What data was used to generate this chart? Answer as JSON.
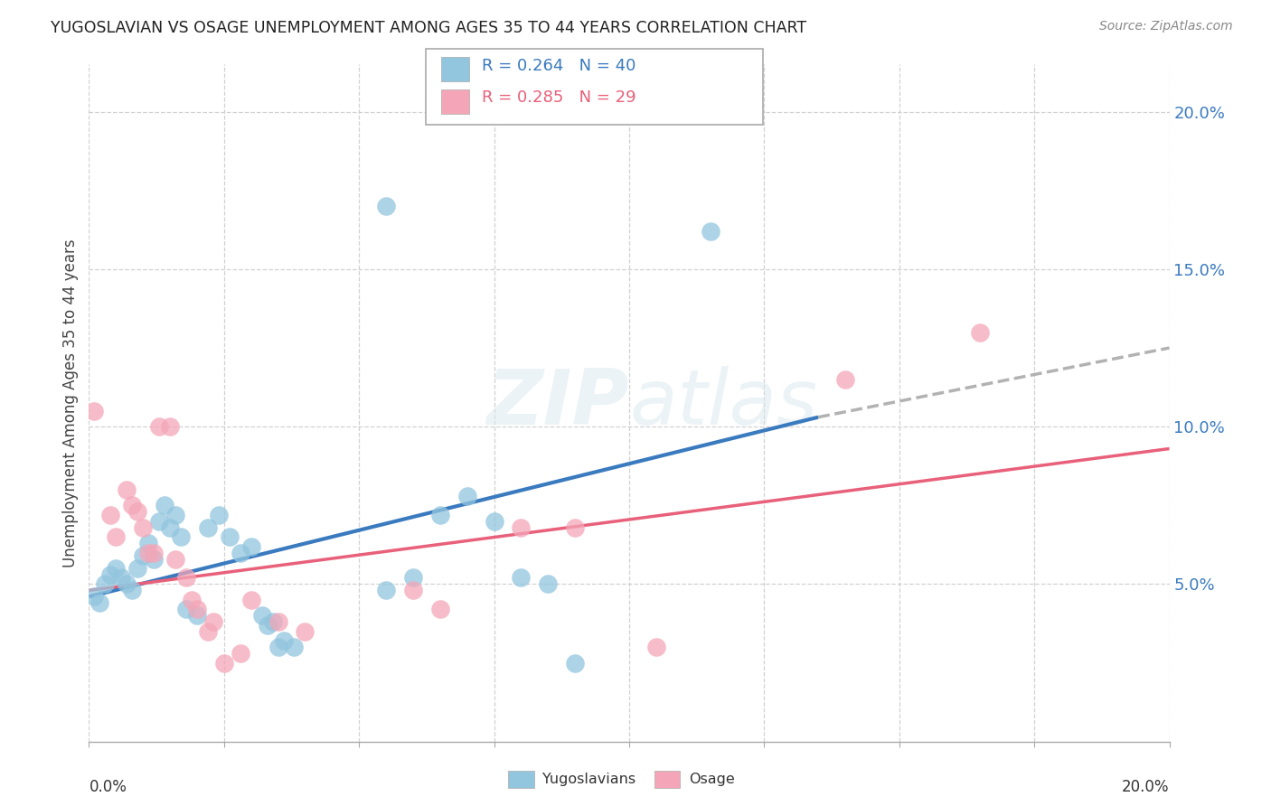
{
  "title": "YUGOSLAVIAN VS OSAGE UNEMPLOYMENT AMONG AGES 35 TO 44 YEARS CORRELATION CHART",
  "source": "Source: ZipAtlas.com",
  "ylabel": "Unemployment Among Ages 35 to 44 years",
  "legend_label1": "Yugoslavians",
  "legend_label2": "Osage",
  "r1": 0.264,
  "n1": 40,
  "r2": 0.285,
  "n2": 29,
  "watermark_zip": "ZIP",
  "watermark_atlas": "atlas",
  "blue_color": "#92c5de",
  "pink_color": "#f4a6b8",
  "blue_line_color": "#3a7abf",
  "pink_line_color": "#e8607a",
  "blue_scatter": [
    [
      0.001,
      0.046
    ],
    [
      0.002,
      0.044
    ],
    [
      0.003,
      0.05
    ],
    [
      0.004,
      0.053
    ],
    [
      0.005,
      0.055
    ],
    [
      0.006,
      0.052
    ],
    [
      0.007,
      0.05
    ],
    [
      0.008,
      0.048
    ],
    [
      0.009,
      0.055
    ],
    [
      0.01,
      0.059
    ],
    [
      0.011,
      0.063
    ],
    [
      0.012,
      0.058
    ],
    [
      0.013,
      0.07
    ],
    [
      0.014,
      0.075
    ],
    [
      0.015,
      0.068
    ],
    [
      0.016,
      0.072
    ],
    [
      0.017,
      0.065
    ],
    [
      0.018,
      0.042
    ],
    [
      0.02,
      0.04
    ],
    [
      0.022,
      0.068
    ],
    [
      0.024,
      0.072
    ],
    [
      0.026,
      0.065
    ],
    [
      0.028,
      0.06
    ],
    [
      0.03,
      0.062
    ],
    [
      0.032,
      0.04
    ],
    [
      0.033,
      0.037
    ],
    [
      0.034,
      0.038
    ],
    [
      0.035,
      0.03
    ],
    [
      0.036,
      0.032
    ],
    [
      0.038,
      0.03
    ],
    [
      0.055,
      0.048
    ],
    [
      0.06,
      0.052
    ],
    [
      0.065,
      0.072
    ],
    [
      0.07,
      0.078
    ],
    [
      0.075,
      0.07
    ],
    [
      0.08,
      0.052
    ],
    [
      0.085,
      0.05
    ],
    [
      0.09,
      0.025
    ],
    [
      0.055,
      0.17
    ],
    [
      0.115,
      0.162
    ]
  ],
  "pink_scatter": [
    [
      0.001,
      0.105
    ],
    [
      0.004,
      0.072
    ],
    [
      0.005,
      0.065
    ],
    [
      0.007,
      0.08
    ],
    [
      0.008,
      0.075
    ],
    [
      0.009,
      0.073
    ],
    [
      0.01,
      0.068
    ],
    [
      0.011,
      0.06
    ],
    [
      0.012,
      0.06
    ],
    [
      0.013,
      0.1
    ],
    [
      0.015,
      0.1
    ],
    [
      0.016,
      0.058
    ],
    [
      0.018,
      0.052
    ],
    [
      0.019,
      0.045
    ],
    [
      0.02,
      0.042
    ],
    [
      0.022,
      0.035
    ],
    [
      0.023,
      0.038
    ],
    [
      0.025,
      0.025
    ],
    [
      0.028,
      0.028
    ],
    [
      0.03,
      0.045
    ],
    [
      0.035,
      0.038
    ],
    [
      0.04,
      0.035
    ],
    [
      0.06,
      0.048
    ],
    [
      0.065,
      0.042
    ],
    [
      0.08,
      0.068
    ],
    [
      0.09,
      0.068
    ],
    [
      0.105,
      0.03
    ],
    [
      0.14,
      0.115
    ],
    [
      0.165,
      0.13
    ]
  ],
  "blue_line_x": [
    0.0,
    0.135
  ],
  "blue_line_y": [
    0.046,
    0.103
  ],
  "pink_line_x": [
    0.0,
    0.2
  ],
  "pink_line_y": [
    0.048,
    0.093
  ],
  "dash_line_x": [
    0.135,
    0.2
  ],
  "dash_line_y": [
    0.103,
    0.125
  ],
  "xlim": [
    0.0,
    0.2
  ],
  "ylim": [
    0.0,
    0.215
  ],
  "yticks": [
    0.05,
    0.1,
    0.15,
    0.2
  ],
  "ytick_labels": [
    "5.0%",
    "10.0%",
    "15.0%",
    "20.0%"
  ],
  "xticks": [
    0.0,
    0.025,
    0.05,
    0.075,
    0.1,
    0.125,
    0.15,
    0.175,
    0.2
  ],
  "background_color": "#ffffff",
  "grid_color": "#cccccc"
}
